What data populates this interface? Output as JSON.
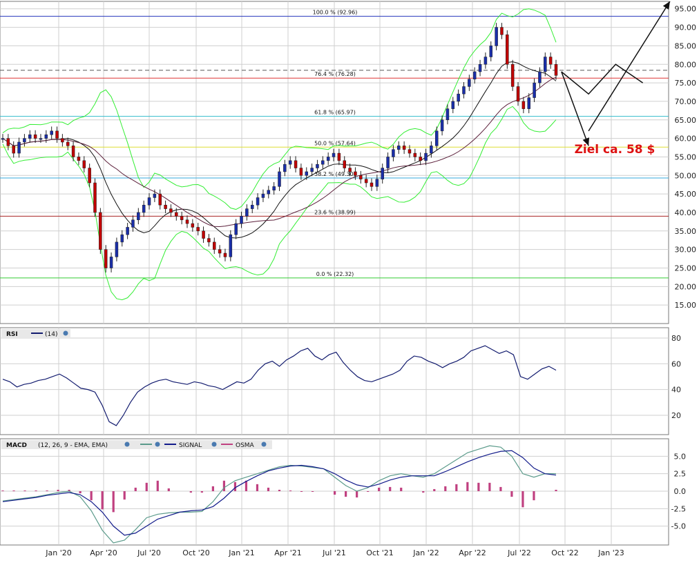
{
  "colors": {
    "background": "#ffffff",
    "grid": "#cfcfcf",
    "bullish": "#1a2ea8",
    "bearish": "#c00000",
    "bollinger": "#33ee33",
    "sma_fast": "#111111",
    "sma_slow": "#5b1f3a",
    "fib_100": "#2233bb",
    "fib_764": "#dd3333",
    "fib_618": "#33bbcc",
    "fib_500": "#dddd33",
    "fib_382": "#33aadd",
    "fib_236": "#aa2222",
    "fib_000": "#33cc33",
    "rsi": "#111a6e",
    "macd": "#5a9a8a",
    "signal": "#111a8a",
    "osma": "#c04080",
    "annotation": "#dd1111"
  },
  "annotation": {
    "text": "Ziel ca. 58 $",
    "icon": "arrow-icon"
  },
  "chart_data": [
    {
      "type": "candlestick",
      "panel": "price",
      "x_labels": [
        "Jan '20",
        "Apr '20",
        "Jul '20",
        "Oct '20",
        "Jan '21",
        "Apr '21",
        "Jul '21",
        "Oct '21",
        "Jan '22",
        "Apr '22",
        "Jul '22",
        "Oct '22",
        "Jan '23"
      ],
      "y_ticks": [
        "15.00",
        "20.00",
        "25.00",
        "30.00",
        "35.00",
        "40.00",
        "45.00",
        "50.00",
        "55.00",
        "60.00",
        "65.00",
        "70.00",
        "75.00",
        "80.00",
        "85.00",
        "90.00",
        "95.00"
      ],
      "ylim": [
        10,
        97
      ],
      "close": [
        60,
        58,
        56,
        59,
        60,
        61,
        60,
        60,
        61,
        62,
        60,
        59,
        58,
        55,
        54,
        52,
        48,
        40,
        30,
        25,
        28,
        32,
        34,
        36,
        38,
        40,
        42,
        44,
        45,
        42,
        41,
        40,
        39,
        38,
        37,
        36,
        35,
        33,
        32,
        30,
        29,
        28,
        34,
        37,
        39,
        41,
        42,
        44,
        45,
        46,
        47,
        51,
        53,
        54,
        52,
        50,
        51,
        52,
        53,
        54,
        55,
        56,
        54,
        52,
        51,
        50,
        49,
        48,
        47,
        49,
        52,
        55,
        57,
        58,
        57,
        56,
        55,
        54,
        56,
        58,
        62,
        65,
        68,
        70,
        72,
        74,
        76,
        78,
        80,
        82,
        85,
        90,
        88,
        80,
        74,
        70,
        68,
        71,
        75,
        78,
        82,
        80,
        77
      ],
      "fibonacci": [
        {
          "level": "100.0 % (92.96)",
          "value": 92.96
        },
        {
          "level": "76.4 % (76.28)",
          "value": 76.28
        },
        {
          "level": "61.8 % (65.97)",
          "value": 65.97
        },
        {
          "level": "50.0 % (57.64)",
          "value": 57.64
        },
        {
          "level": "38.2 % (49.30)",
          "value": 49.3
        },
        {
          "level": "23.6 % (38.99)",
          "value": 38.99
        },
        {
          "level": "0.0 % (22.32)",
          "value": 22.32
        }
      ],
      "dashed_line": 78.4,
      "projection_path": [
        [
          103,
          78
        ],
        [
          108,
          72
        ],
        [
          113,
          80
        ],
        [
          118,
          75
        ]
      ],
      "projection_down": [
        [
          103,
          78
        ],
        [
          108,
          58
        ]
      ],
      "projection_up": [
        [
          108,
          62
        ],
        [
          123,
          97
        ]
      ]
    },
    {
      "type": "line",
      "panel": "rsi",
      "title": "RSI",
      "param": "(14)",
      "y_ticks": [
        "20",
        "40",
        "60",
        "80"
      ],
      "ylim": [
        5,
        88
      ],
      "values": [
        48,
        46,
        42,
        44,
        45,
        47,
        48,
        50,
        52,
        49,
        45,
        41,
        40,
        38,
        28,
        15,
        12,
        20,
        30,
        38,
        42,
        45,
        47,
        48,
        46,
        45,
        44,
        46,
        45,
        43,
        42,
        40,
        43,
        46,
        45,
        48,
        55,
        60,
        62,
        58,
        63,
        66,
        70,
        72,
        66,
        63,
        67,
        69,
        61,
        55,
        50,
        47,
        46,
        48,
        50,
        52,
        55,
        62,
        66,
        65,
        62,
        60,
        57,
        60,
        62,
        65,
        70,
        72,
        74,
        71,
        68,
        70,
        67,
        50,
        48,
        52,
        56,
        58,
        55
      ]
    },
    {
      "type": "macd",
      "panel": "macd",
      "title": "MACD",
      "params": "(12, 26, 9 - EMA, EMA)",
      "legend": [
        "SIGNAL",
        "OSMA"
      ],
      "y_ticks": [
        "-5.0",
        "-2.5",
        "0.0",
        "2.5",
        "5.0"
      ],
      "ylim": [
        -7.7,
        7.5
      ],
      "macd": [
        -1.4,
        -1.2,
        -1.0,
        -0.8,
        -0.5,
        -0.2,
        0.0,
        -0.8,
        -2.8,
        -5.6,
        -7.4,
        -7.0,
        -5.5,
        -3.8,
        -3.3,
        -3.1,
        -3.0,
        -3.0,
        -2.9,
        -1.5,
        0.5,
        1.5,
        2.0,
        2.5,
        3.0,
        3.5,
        3.7,
        3.6,
        3.4,
        3.2,
        2.0,
        0.8,
        0.0,
        0.5,
        1.5,
        2.2,
        2.5,
        2.2,
        2.0,
        2.5,
        3.5,
        4.5,
        5.5,
        6.0,
        6.5,
        6.3,
        5.0,
        2.5,
        2.0,
        2.5,
        2.5
      ],
      "signal": [
        -1.5,
        -1.3,
        -1.1,
        -0.9,
        -0.6,
        -0.4,
        -0.2,
        -0.5,
        -1.5,
        -3.0,
        -5.0,
        -6.3,
        -6.0,
        -5.0,
        -4.0,
        -3.5,
        -3.0,
        -2.8,
        -2.7,
        -2.2,
        -1.0,
        0.5,
        1.4,
        2.2,
        2.9,
        3.3,
        3.6,
        3.7,
        3.5,
        3.2,
        2.5,
        1.6,
        0.9,
        0.6,
        1.0,
        1.6,
        2.0,
        2.2,
        2.2,
        2.2,
        2.8,
        3.5,
        4.2,
        4.8,
        5.3,
        5.7,
        5.8,
        4.8,
        3.3,
        2.5,
        2.3
      ],
      "osma": [
        0.1,
        0.1,
        0.1,
        0.1,
        0.1,
        0.2,
        0.2,
        -0.3,
        -1.3,
        -2.6,
        -3.0,
        -1.2,
        0.5,
        1.2,
        1.5,
        0.4,
        0.0,
        -0.2,
        -0.2,
        0.7,
        1.5,
        1.3,
        1.5,
        1.0,
        0.5,
        0.2,
        0.1,
        -0.1,
        -0.1,
        0.0,
        -0.5,
        -0.8,
        -0.9,
        -0.1,
        0.5,
        0.6,
        0.5,
        0.0,
        -0.2,
        0.3,
        0.7,
        1.0,
        1.3,
        1.2,
        1.2,
        0.6,
        -0.8,
        -2.3,
        -1.3,
        0.0,
        0.2
      ]
    }
  ]
}
